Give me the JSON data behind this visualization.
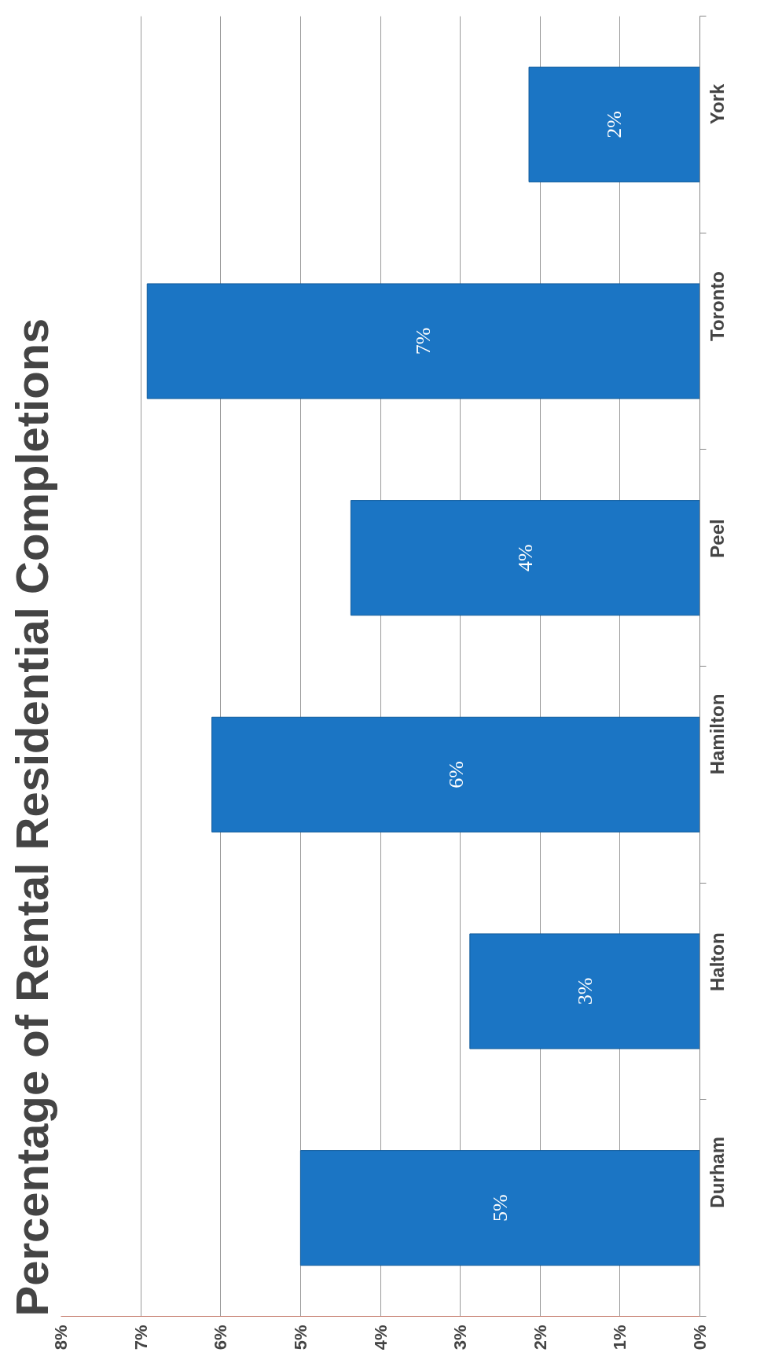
{
  "chart_data": {
    "type": "bar",
    "orientation": "horizontal",
    "title": "Percentage of Rental Residential Completions",
    "categories": [
      "York",
      "Toronto",
      "Peel",
      "Hamilton",
      "Halton",
      "Durham"
    ],
    "values": [
      2.14,
      6.92,
      4.37,
      6.11,
      2.88,
      5.0
    ],
    "value_labels": [
      "2%",
      "7%",
      "4%",
      "6%",
      "3%",
      "5%"
    ],
    "color": "#1b75c4",
    "xlim": [
      8,
      0
    ],
    "xticks": [
      {
        "value": 0,
        "label": "0%"
      },
      {
        "value": 1,
        "label": "1%"
      },
      {
        "value": 2,
        "label": "2%"
      },
      {
        "value": 3,
        "label": "3%"
      },
      {
        "value": 4,
        "label": "4%"
      },
      {
        "value": 5,
        "label": "5%"
      },
      {
        "value": 6,
        "label": "6%"
      },
      {
        "value": 7,
        "label": "7%"
      },
      {
        "value": 8,
        "label": "8%"
      }
    ],
    "grid": "x"
  }
}
